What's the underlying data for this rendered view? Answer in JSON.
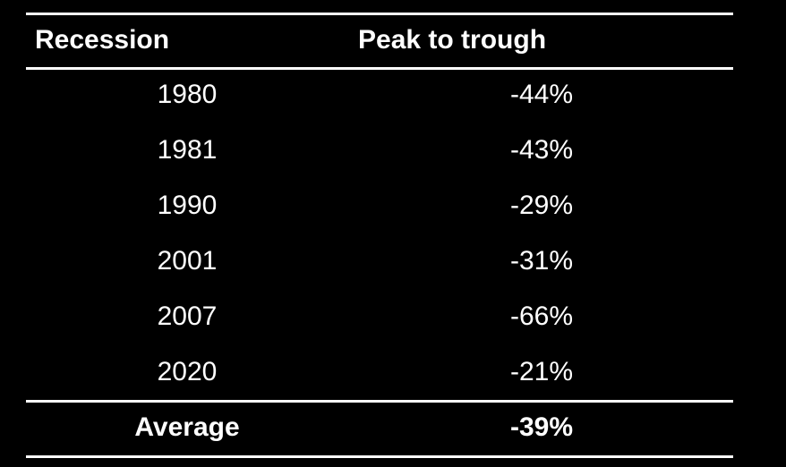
{
  "colors": {
    "background": "#000000",
    "text": "#ffffff",
    "rules": "#ffffff"
  },
  "chart_data": {
    "type": "table",
    "columns": [
      "Recession",
      "Peak to trough"
    ],
    "rows": [
      {
        "recession": "1980",
        "peak_to_trough": "-44%"
      },
      {
        "recession": "1981",
        "peak_to_trough": "-43%"
      },
      {
        "recession": "1990",
        "peak_to_trough": "-29%"
      },
      {
        "recession": "2001",
        "peak_to_trough": "-31%"
      },
      {
        "recession": "2007",
        "peak_to_trough": "-66%"
      },
      {
        "recession": "2020",
        "peak_to_trough": "-21%"
      }
    ],
    "summary": {
      "label": "Average",
      "value": "-39%"
    }
  }
}
